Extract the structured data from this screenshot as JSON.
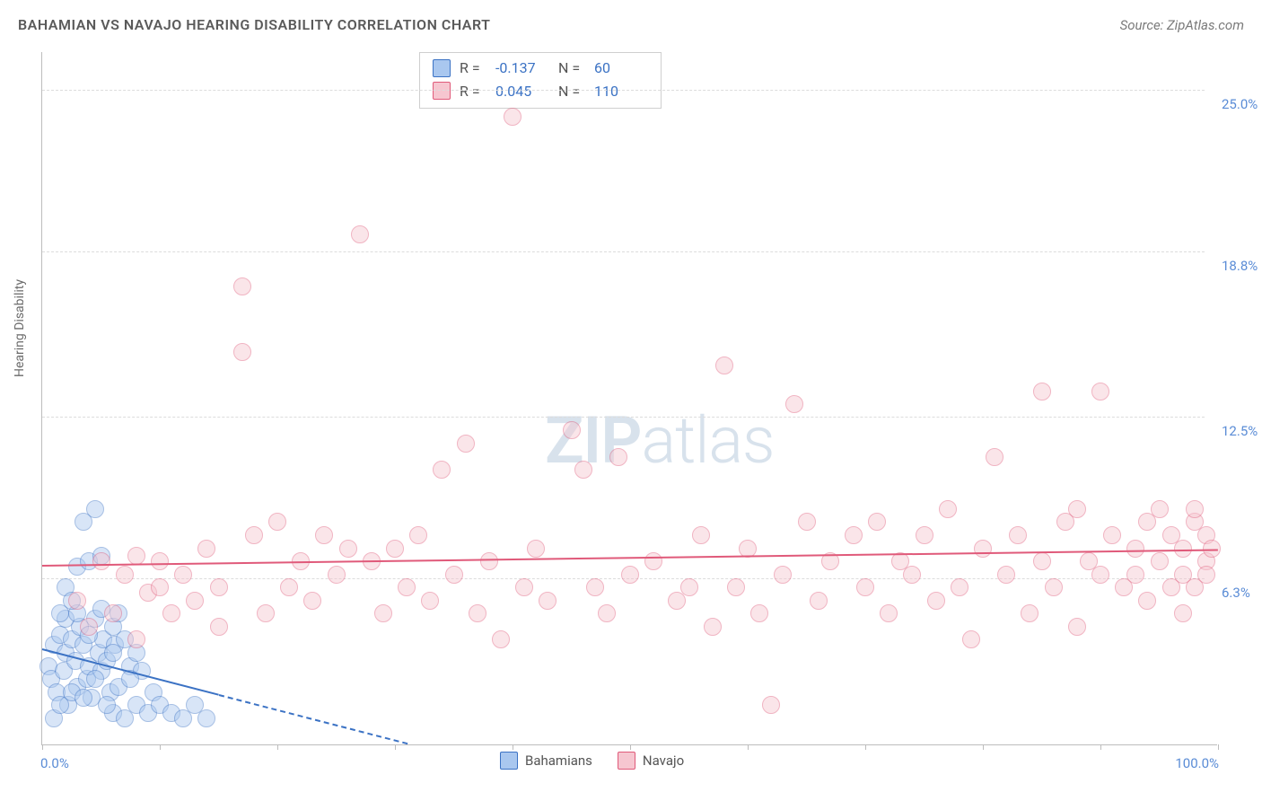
{
  "title": "BAHAMIAN VS NAVAJO HEARING DISABILITY CORRELATION CHART",
  "source": "Source: ZipAtlas.com",
  "ylabel": "Hearing Disability",
  "watermark_bold": "ZIP",
  "watermark_light": "atlas",
  "chart": {
    "type": "scatter",
    "xlim": [
      0,
      100
    ],
    "ylim": [
      0,
      26.5
    ],
    "y_ticks": [
      {
        "value": 6.3,
        "label": "6.3%"
      },
      {
        "value": 12.5,
        "label": "12.5%"
      },
      {
        "value": 18.8,
        "label": "18.8%"
      },
      {
        "value": 25.0,
        "label": "25.0%"
      }
    ],
    "x_tick_positions": [
      0,
      10,
      20,
      30,
      40,
      50,
      60,
      70,
      80,
      90,
      100
    ],
    "x_labels": [
      {
        "value": 0,
        "label": "0.0%",
        "align": "left"
      },
      {
        "value": 100,
        "label": "100.0%",
        "align": "right"
      }
    ],
    "background_color": "#ffffff",
    "grid_color": "#dcdcdc",
    "axis_color": "#bdbdbd",
    "tick_label_color": "#5a8cd6",
    "marker_radius": 10,
    "marker_opacity": 0.45,
    "series": [
      {
        "name": "Bahamians",
        "color_fill": "#a9c7ef",
        "color_stroke": "#3b72c4",
        "R": "-0.137",
        "N": "60",
        "trend": {
          "y_at_x0": 3.6,
          "y_at_x100": -8.0,
          "solid_until_x": 15
        },
        "points": [
          [
            0.5,
            3.0
          ],
          [
            0.8,
            2.5
          ],
          [
            1.0,
            3.8
          ],
          [
            1.2,
            2.0
          ],
          [
            1.5,
            4.2
          ],
          [
            1.8,
            2.8
          ],
          [
            2.0,
            3.5
          ],
          [
            2.2,
            1.5
          ],
          [
            2.5,
            4.0
          ],
          [
            2.8,
            3.2
          ],
          [
            3.0,
            2.2
          ],
          [
            3.2,
            4.5
          ],
          [
            3.5,
            3.8
          ],
          [
            3.8,
            2.5
          ],
          [
            4.0,
            3.0
          ],
          [
            4.2,
            1.8
          ],
          [
            4.5,
            4.8
          ],
          [
            4.8,
            3.5
          ],
          [
            5.0,
            2.8
          ],
          [
            5.2,
            4.0
          ],
          [
            5.5,
            3.2
          ],
          [
            5.8,
            2.0
          ],
          [
            6.0,
            1.2
          ],
          [
            6.2,
            3.8
          ],
          [
            1.0,
            1.0
          ],
          [
            1.5,
            1.5
          ],
          [
            2.0,
            4.8
          ],
          [
            2.5,
            2.0
          ],
          [
            3.0,
            5.0
          ],
          [
            3.5,
            1.8
          ],
          [
            4.0,
            4.2
          ],
          [
            4.5,
            2.5
          ],
          [
            5.0,
            5.2
          ],
          [
            5.5,
            1.5
          ],
          [
            6.0,
            3.5
          ],
          [
            6.5,
            2.2
          ],
          [
            7.0,
            1.0
          ],
          [
            7.5,
            3.0
          ],
          [
            8.0,
            1.5
          ],
          [
            8.5,
            2.8
          ],
          [
            9.0,
            1.2
          ],
          [
            2.0,
            6.0
          ],
          [
            3.0,
            6.8
          ],
          [
            4.0,
            7.0
          ],
          [
            5.0,
            7.2
          ],
          [
            3.5,
            8.5
          ],
          [
            4.5,
            9.0
          ],
          [
            2.5,
            5.5
          ],
          [
            1.5,
            5.0
          ],
          [
            6.0,
            4.5
          ],
          [
            7.0,
            4.0
          ],
          [
            8.0,
            3.5
          ],
          [
            9.5,
            2.0
          ],
          [
            10.0,
            1.5
          ],
          [
            11.0,
            1.2
          ],
          [
            12.0,
            1.0
          ],
          [
            13.0,
            1.5
          ],
          [
            14.0,
            1.0
          ],
          [
            6.5,
            5.0
          ],
          [
            7.5,
            2.5
          ]
        ]
      },
      {
        "name": "Navajo",
        "color_fill": "#f6c6d0",
        "color_stroke": "#e05a7a",
        "R": "0.045",
        "N": "110",
        "trend": {
          "y_at_x0": 6.8,
          "y_at_x100": 7.4,
          "solid_until_x": 100
        },
        "points": [
          [
            3,
            5.5
          ],
          [
            4,
            4.5
          ],
          [
            5,
            7.0
          ],
          [
            6,
            5.0
          ],
          [
            7,
            6.5
          ],
          [
            8,
            7.2
          ],
          [
            8,
            4.0
          ],
          [
            9,
            5.8
          ],
          [
            10,
            6.0
          ],
          [
            10,
            7.0
          ],
          [
            11,
            5.0
          ],
          [
            12,
            6.5
          ],
          [
            13,
            5.5
          ],
          [
            14,
            7.5
          ],
          [
            15,
            6.0
          ],
          [
            15,
            4.5
          ],
          [
            17,
            15.0
          ],
          [
            17,
            17.5
          ],
          [
            18,
            8.0
          ],
          [
            19,
            5.0
          ],
          [
            20,
            8.5
          ],
          [
            21,
            6.0
          ],
          [
            22,
            7.0
          ],
          [
            23,
            5.5
          ],
          [
            24,
            8.0
          ],
          [
            25,
            6.5
          ],
          [
            26,
            7.5
          ],
          [
            27,
            19.5
          ],
          [
            28,
            7.0
          ],
          [
            29,
            5.0
          ],
          [
            30,
            7.5
          ],
          [
            31,
            6.0
          ],
          [
            32,
            8.0
          ],
          [
            33,
            5.5
          ],
          [
            34,
            10.5
          ],
          [
            35,
            6.5
          ],
          [
            36,
            11.5
          ],
          [
            37,
            5.0
          ],
          [
            38,
            7.0
          ],
          [
            39,
            4.0
          ],
          [
            40,
            24.0
          ],
          [
            41,
            6.0
          ],
          [
            42,
            7.5
          ],
          [
            43,
            5.5
          ],
          [
            45,
            12.0
          ],
          [
            46,
            10.5
          ],
          [
            47,
            6.0
          ],
          [
            48,
            5.0
          ],
          [
            49,
            11.0
          ],
          [
            50,
            6.5
          ],
          [
            52,
            7.0
          ],
          [
            54,
            5.5
          ],
          [
            55,
            6.0
          ],
          [
            56,
            8.0
          ],
          [
            57,
            4.5
          ],
          [
            58,
            14.5
          ],
          [
            59,
            6.0
          ],
          [
            60,
            7.5
          ],
          [
            61,
            5.0
          ],
          [
            62,
            1.5
          ],
          [
            63,
            6.5
          ],
          [
            64,
            13.0
          ],
          [
            65,
            8.5
          ],
          [
            66,
            5.5
          ],
          [
            67,
            7.0
          ],
          [
            69,
            8.0
          ],
          [
            70,
            6.0
          ],
          [
            71,
            8.5
          ],
          [
            72,
            5.0
          ],
          [
            73,
            7.0
          ],
          [
            74,
            6.5
          ],
          [
            75,
            8.0
          ],
          [
            76,
            5.5
          ],
          [
            77,
            9.0
          ],
          [
            78,
            6.0
          ],
          [
            79,
            4.0
          ],
          [
            80,
            7.5
          ],
          [
            81,
            11.0
          ],
          [
            82,
            6.5
          ],
          [
            83,
            8.0
          ],
          [
            84,
            5.0
          ],
          [
            85,
            13.5
          ],
          [
            85,
            7.0
          ],
          [
            86,
            6.0
          ],
          [
            87,
            8.5
          ],
          [
            88,
            9.0
          ],
          [
            88,
            4.5
          ],
          [
            89,
            7.0
          ],
          [
            90,
            6.5
          ],
          [
            90,
            13.5
          ],
          [
            91,
            8.0
          ],
          [
            92,
            6.0
          ],
          [
            93,
            6.5
          ],
          [
            93,
            7.5
          ],
          [
            94,
            8.5
          ],
          [
            94,
            5.5
          ],
          [
            95,
            9.0
          ],
          [
            95,
            7.0
          ],
          [
            96,
            6.0
          ],
          [
            96,
            8.0
          ],
          [
            97,
            6.5
          ],
          [
            97,
            7.5
          ],
          [
            97,
            5.0
          ],
          [
            98,
            8.5
          ],
          [
            98,
            6.0
          ],
          [
            98,
            9.0
          ],
          [
            99,
            7.0
          ],
          [
            99,
            6.5
          ],
          [
            99,
            8.0
          ],
          [
            99.5,
            7.5
          ]
        ]
      }
    ],
    "legend_series": [
      {
        "name": "Bahamians",
        "fill": "#a9c7ef",
        "stroke": "#3b72c4"
      },
      {
        "name": "Navajo",
        "fill": "#f6c6d0",
        "stroke": "#e05a7a"
      }
    ]
  }
}
